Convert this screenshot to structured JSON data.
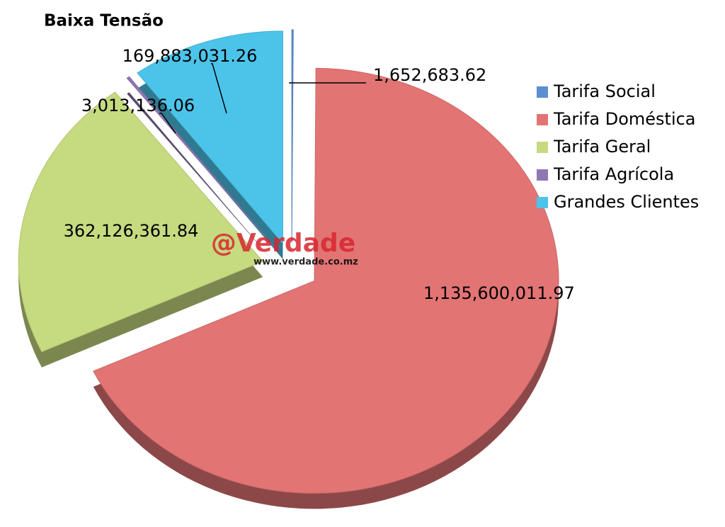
{
  "chart_data": {
    "type": "pie",
    "title": "Baixa Tensão",
    "categories": [
      "Tarifa Social",
      "Tarifa Doméstica",
      "Tarifa Geral",
      "Tarifa Agrícola",
      "Grandes Clientes"
    ],
    "values": [
      1652683.62,
      1135600011.97,
      362126361.84,
      3013136.06,
      169883031.26
    ],
    "value_labels": [
      "1,652,683.62",
      "1,135,600,011.97",
      "362,126,361.84",
      "3,013,136.06",
      "169,883,031.26"
    ],
    "colors": [
      "#5b8fd0",
      "#e27474",
      "#c6da80",
      "#8f77b3",
      "#4cc4ea"
    ],
    "legend": "right",
    "watermark": {
      "brand": "@Verdade",
      "url": "www.verdade.co.mz"
    }
  }
}
